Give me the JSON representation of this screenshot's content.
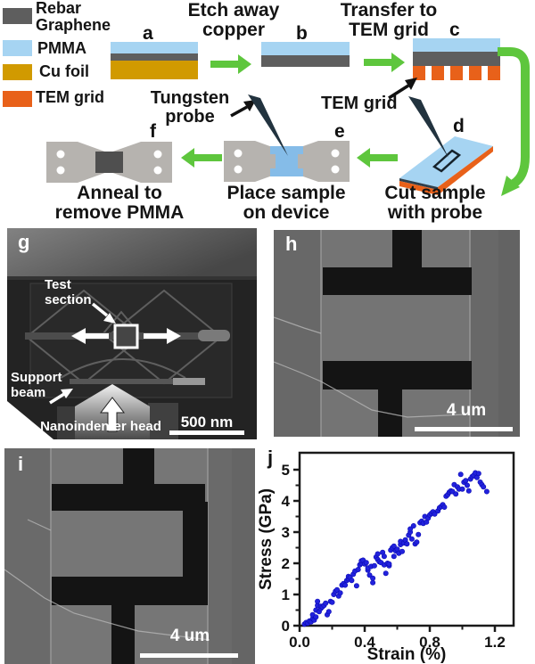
{
  "legend": {
    "items": [
      {
        "label": "Rebar\nGraphene",
        "color_key": "graphene"
      },
      {
        "label": "PMMA",
        "color_key": "pmma"
      },
      {
        "label": "Cu foil",
        "color_key": "cu"
      },
      {
        "label": "TEM grid",
        "color_key": "tem"
      }
    ]
  },
  "steps": {
    "etch": "Etch away\ncopper",
    "transfer": "Transfer to\nTEM grid",
    "cut": "Cut sample\nwith probe",
    "place": "Place sample\non device",
    "anneal": "Anneal to\nremove PMMA"
  },
  "annotations": {
    "tem_grid": "TEM grid",
    "tungsten_probe": "Tungsten\nprobe"
  },
  "panel_letters": {
    "a": "a",
    "b": "b",
    "c": "c",
    "d": "d",
    "e": "e",
    "f": "f",
    "g": "g",
    "h": "h",
    "i": "i",
    "j": "j"
  },
  "sem": {
    "test_section": "Test\nsection",
    "support_beam": "Support\nbeam",
    "nanoindenter_head": "Nanoindenter head",
    "scale_g": "500 nm",
    "scale_h": "4 um",
    "scale_i": "4 um"
  },
  "colors": {
    "graphene": "#5e5e5e",
    "pmma": "#a6d4f2",
    "cu": "#d19a00",
    "tem": "#e8611a",
    "green": "#5ec63d",
    "probe": "#22333f",
    "device": "#b6b3af",
    "sample_e": "#85bce8",
    "sample_f": "#4f4f4f",
    "scatter": "#2222dd"
  },
  "chart_data": {
    "type": "scatter",
    "title": "",
    "xlabel": "Strain (%)",
    "ylabel": "Stress (GPa)",
    "xlim": [
      0,
      1.32
    ],
    "ylim": [
      0,
      5.55
    ],
    "x_major_ticks": [
      0.0,
      0.4,
      0.8,
      1.2
    ],
    "x_tick_labels": [
      "0.0",
      "0.4",
      "0.8",
      "1.2"
    ],
    "x_minor_ticks": [
      0.2,
      0.6,
      1.0
    ],
    "y_major_ticks": [
      0,
      1,
      2,
      3,
      4,
      5
    ],
    "y_tick_labels": [
      "0",
      "1",
      "2",
      "3",
      "4",
      "5"
    ],
    "y_minor_ticks": [
      0.5,
      1.5,
      2.5,
      3.5,
      4.5
    ],
    "grid": false,
    "legend_position": "none",
    "point_color": "#2222dd",
    "points": [
      [
        0.03,
        0.05
      ],
      [
        0.04,
        0.1
      ],
      [
        0.05,
        0.08
      ],
      [
        0.06,
        0.15
      ],
      [
        0.07,
        0.12
      ],
      [
        0.08,
        0.22
      ],
      [
        0.08,
        0.35
      ],
      [
        0.09,
        0.18
      ],
      [
        0.1,
        0.28
      ],
      [
        0.1,
        0.5
      ],
      [
        0.11,
        0.65
      ],
      [
        0.11,
        0.78
      ],
      [
        0.12,
        0.45
      ],
      [
        0.13,
        0.55
      ],
      [
        0.13,
        0.62
      ],
      [
        0.14,
        0.6
      ],
      [
        0.15,
        0.65
      ],
      [
        0.16,
        0.72
      ],
      [
        0.17,
        0.35
      ],
      [
        0.18,
        0.45
      ],
      [
        0.19,
        0.78
      ],
      [
        0.2,
        0.75
      ],
      [
        0.21,
        1.0
      ],
      [
        0.22,
        1.1
      ],
      [
        0.23,
        1.15
      ],
      [
        0.24,
        0.95
      ],
      [
        0.25,
        1.05
      ],
      [
        0.26,
        1.3
      ],
      [
        0.27,
        1.35
      ],
      [
        0.28,
        1.3
      ],
      [
        0.29,
        1.45
      ],
      [
        0.3,
        1.5
      ],
      [
        0.3,
        1.58
      ],
      [
        0.31,
        1.55
      ],
      [
        0.32,
        1.45
      ],
      [
        0.33,
        1.65
      ],
      [
        0.34,
        1.75
      ],
      [
        0.35,
        1.28
      ],
      [
        0.36,
        1.8
      ],
      [
        0.37,
        1.95
      ],
      [
        0.38,
        2.0
      ],
      [
        0.38,
        2.08
      ],
      [
        0.39,
        2.1
      ],
      [
        0.4,
        1.98
      ],
      [
        0.41,
        2.02
      ],
      [
        0.42,
        1.78
      ],
      [
        0.42,
        1.85
      ],
      [
        0.43,
        1.62
      ],
      [
        0.44,
        1.9
      ],
      [
        0.45,
        1.38
      ],
      [
        0.45,
        1.52
      ],
      [
        0.46,
        1.92
      ],
      [
        0.47,
        2.2
      ],
      [
        0.48,
        2.12
      ],
      [
        0.48,
        2.3
      ],
      [
        0.49,
        2.05
      ],
      [
        0.5,
        2.02
      ],
      [
        0.51,
        2.35
      ],
      [
        0.52,
        1.95
      ],
      [
        0.52,
        2.22
      ],
      [
        0.53,
        1.68
      ],
      [
        0.54,
        2.0
      ],
      [
        0.55,
        1.92
      ],
      [
        0.55,
        1.98
      ],
      [
        0.56,
        2.42
      ],
      [
        0.57,
        2.5
      ],
      [
        0.58,
        2.22
      ],
      [
        0.58,
        2.55
      ],
      [
        0.59,
        2.4
      ],
      [
        0.6,
        2.45
      ],
      [
        0.61,
        2.32
      ],
      [
        0.62,
        2.6
      ],
      [
        0.62,
        2.7
      ],
      [
        0.63,
        2.38
      ],
      [
        0.64,
        2.65
      ],
      [
        0.65,
        2.75
      ],
      [
        0.66,
        2.62
      ],
      [
        0.67,
        2.9
      ],
      [
        0.68,
        3.0
      ],
      [
        0.68,
        3.1
      ],
      [
        0.69,
        2.78
      ],
      [
        0.7,
        3.2
      ],
      [
        0.71,
        2.62
      ],
      [
        0.72,
        2.68
      ],
      [
        0.73,
        2.92
      ],
      [
        0.74,
        3.3
      ],
      [
        0.75,
        3.35
      ],
      [
        0.76,
        3.28
      ],
      [
        0.77,
        3.5
      ],
      [
        0.78,
        3.32
      ],
      [
        0.79,
        3.45
      ],
      [
        0.8,
        3.55
      ],
      [
        0.81,
        3.6
      ],
      [
        0.82,
        3.65
      ],
      [
        0.83,
        3.58
      ],
      [
        0.85,
        3.68
      ],
      [
        0.86,
        3.78
      ],
      [
        0.87,
        3.82
      ],
      [
        0.88,
        3.88
      ],
      [
        0.89,
        3.8
      ],
      [
        0.9,
        4.15
      ],
      [
        0.91,
        4.2
      ],
      [
        0.92,
        4.28
      ],
      [
        0.93,
        4.32
      ],
      [
        0.94,
        4.3
      ],
      [
        0.95,
        4.52
      ],
      [
        0.96,
        4.22
      ],
      [
        0.97,
        4.45
      ],
      [
        0.98,
        4.38
      ],
      [
        0.99,
        4.85
      ],
      [
        1.0,
        4.38
      ],
      [
        1.01,
        4.6
      ],
      [
        1.02,
        4.65
      ],
      [
        1.03,
        4.5
      ],
      [
        1.04,
        4.32
      ],
      [
        1.05,
        4.7
      ],
      [
        1.06,
        4.78
      ],
      [
        1.07,
        4.82
      ],
      [
        1.08,
        4.9
      ],
      [
        1.09,
        4.75
      ],
      [
        1.1,
        4.88
      ],
      [
        1.11,
        4.6
      ],
      [
        1.12,
        4.52
      ],
      [
        1.13,
        4.45
      ],
      [
        1.15,
        4.3
      ]
    ]
  }
}
